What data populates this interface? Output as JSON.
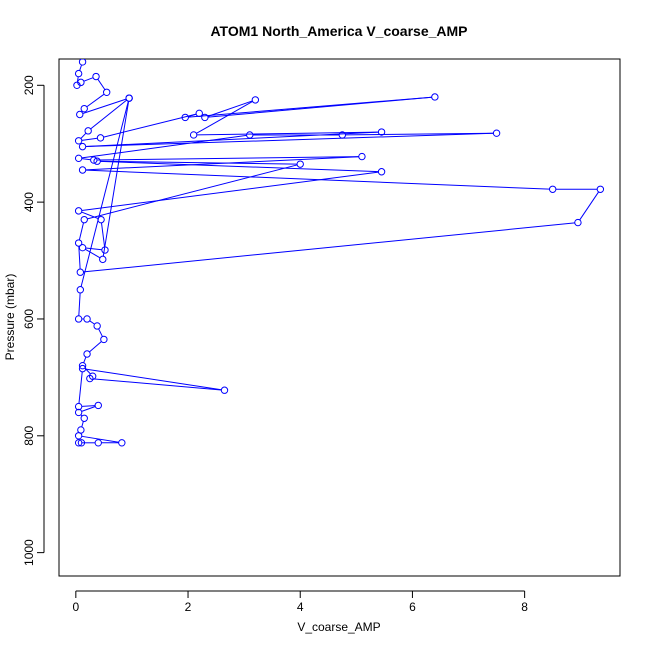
{
  "chart_data": {
    "type": "line",
    "title": "ATOM1 North_America V_coarse_AMP",
    "xlabel": "V_coarse_AMP",
    "ylabel": "Pressure (mbar)",
    "xlim": [
      -0.3,
      9.7
    ],
    "ylim": [
      1040,
      155
    ],
    "y_inverted": true,
    "x_ticks": [
      0,
      2,
      4,
      6,
      8
    ],
    "y_ticks": [
      200,
      400,
      600,
      800,
      1000
    ],
    "grid": false,
    "legend": "none",
    "series": [
      {
        "color": "#0000ff",
        "marker": "open-circle",
        "points": [
          [
            0.12,
            160
          ],
          [
            0.05,
            180
          ],
          [
            0.02,
            200
          ],
          [
            0.09,
            195
          ],
          [
            0.36,
            185
          ],
          [
            0.55,
            212
          ],
          [
            0.15,
            240
          ],
          [
            0.07,
            250
          ],
          [
            0.95,
            222
          ],
          [
            0.22,
            278
          ],
          [
            0.05,
            295
          ],
          [
            0.44,
            290
          ],
          [
            2.2,
            248
          ],
          [
            1.95,
            255
          ],
          [
            6.4,
            220
          ],
          [
            2.3,
            255
          ],
          [
            3.2,
            225
          ],
          [
            2.1,
            285
          ],
          [
            5.45,
            280
          ],
          [
            0.12,
            305
          ],
          [
            7.5,
            282
          ],
          [
            4.75,
            285
          ],
          [
            3.1,
            285
          ],
          [
            0.05,
            325
          ],
          [
            0.32,
            328
          ],
          [
            5.1,
            322
          ],
          [
            0.12,
            345
          ],
          [
            8.5,
            378
          ],
          [
            9.35,
            378
          ],
          [
            8.95,
            435
          ],
          [
            0.08,
            520
          ],
          [
            0.05,
            470
          ],
          [
            0.15,
            430
          ],
          [
            4.0,
            335
          ],
          [
            0.38,
            330
          ],
          [
            5.45,
            348
          ],
          [
            0.05,
            415
          ],
          [
            0.45,
            430
          ],
          [
            0.52,
            482
          ],
          [
            0.12,
            478
          ],
          [
            0.48,
            498
          ],
          [
            0.95,
            222
          ],
          [
            0.08,
            550
          ],
          [
            0.05,
            600
          ],
          [
            0.2,
            600
          ],
          [
            0.38,
            612
          ],
          [
            0.5,
            635
          ],
          [
            0.2,
            660
          ],
          [
            0.12,
            680
          ],
          [
            0.3,
            698
          ],
          [
            0.25,
            702
          ],
          [
            2.65,
            722
          ],
          [
            0.12,
            685
          ],
          [
            0.05,
            750
          ],
          [
            0.4,
            748
          ],
          [
            0.05,
            760
          ],
          [
            0.15,
            770
          ],
          [
            0.09,
            790
          ],
          [
            0.05,
            800
          ],
          [
            0.82,
            812
          ],
          [
            0.4,
            812
          ],
          [
            0.05,
            812
          ],
          [
            0.1,
            812
          ]
        ]
      }
    ]
  }
}
